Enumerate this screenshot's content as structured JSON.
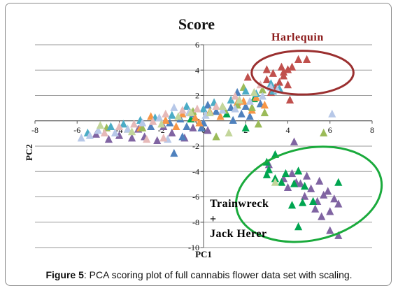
{
  "caption": {
    "label": "Figure 5",
    "text": ": PCA scoring plot of full cannabis flower data set with scaling."
  },
  "chart_data": {
    "type": "scatter",
    "title": "Score",
    "xlabel": "PC1",
    "ylabel": "PC2",
    "xlim": [
      -8,
      8
    ],
    "ylim": [
      -10,
      6
    ],
    "x_ticks": [
      "-8",
      "-6",
      "-4",
      "-2",
      "0",
      "2",
      "4",
      "6",
      "8"
    ],
    "y_ticks": [
      "6",
      "4",
      "2",
      "0",
      "-2",
      "-4",
      "-6",
      "-8",
      "-10"
    ],
    "grid": "horizontal",
    "marker": "triangle",
    "annotations": [
      {
        "text": "Harlequin",
        "color": "#8b1a1a"
      },
      {
        "text": "Trainwreck",
        "color": "#000000"
      },
      {
        "text": "+",
        "color": "#000000"
      },
      {
        "text": "Jack Herer",
        "color": "#000000"
      }
    ],
    "clusters": [
      {
        "label": "Harlequin",
        "color": "#9b3030",
        "center": [
          4.7,
          3.8
        ],
        "radius": [
          2.9,
          1.9
        ]
      },
      {
        "label": "Trainwreck + Jack Herer",
        "color": "#1aaa3c",
        "center": [
          5.0,
          -5.8
        ],
        "radius": [
          4.2,
          4.0
        ]
      }
    ],
    "series": [
      {
        "color": "#c0504d",
        "points": [
          [
            3.0,
            4.0
          ],
          [
            3.7,
            4.2
          ],
          [
            4.0,
            4.0
          ],
          [
            4.2,
            4.2
          ],
          [
            4.5,
            4.8
          ],
          [
            4.9,
            4.8
          ],
          [
            3.3,
            3.7
          ],
          [
            3.8,
            3.5
          ],
          [
            3.6,
            3.0
          ],
          [
            4.0,
            2.8
          ],
          [
            3.4,
            2.6
          ],
          [
            4.1,
            1.6
          ],
          [
            3.0,
            3.2
          ],
          [
            2.1,
            3.4
          ],
          [
            3.2,
            2.2
          ],
          [
            3.8,
            3.8
          ]
        ]
      },
      {
        "color": "#8064a2",
        "points": [
          [
            4.2,
            -4.2
          ],
          [
            4.9,
            -4.4
          ],
          [
            5.5,
            -4.8
          ],
          [
            4.6,
            -5.0
          ],
          [
            5.1,
            -5.4
          ],
          [
            5.9,
            -5.6
          ],
          [
            4.8,
            -6.0
          ],
          [
            5.4,
            -6.4
          ],
          [
            6.2,
            -6.2
          ],
          [
            6.4,
            -6.6
          ],
          [
            5.3,
            -7.0
          ],
          [
            6.0,
            -7.2
          ],
          [
            5.6,
            -7.6
          ],
          [
            6.4,
            -9.1
          ],
          [
            6.0,
            -8.7
          ],
          [
            3.8,
            -4.6
          ],
          [
            4.3,
            -1.7
          ],
          [
            5.7,
            -5.9
          ],
          [
            4.4,
            -4.9
          ],
          [
            3.1,
            -3.5
          ],
          [
            4.0,
            -5.3
          ],
          [
            -5.1,
            -1.1
          ],
          [
            -4.5,
            -1.5
          ],
          [
            -4.0,
            -1.2
          ],
          [
            -3.4,
            -1.4
          ],
          [
            -2.8,
            -1.3
          ],
          [
            -2.2,
            -1.6
          ],
          [
            -1.5,
            -1.0
          ],
          [
            -0.9,
            -1.4
          ],
          [
            -3.1,
            -0.7
          ],
          [
            -1.9,
            -0.5
          ],
          [
            -0.5,
            -0.6
          ],
          [
            0.2,
            -0.8
          ]
        ]
      },
      {
        "color": "#00a550",
        "points": [
          [
            3.0,
            -3.3
          ],
          [
            3.1,
            -3.9
          ],
          [
            3.4,
            -2.7
          ],
          [
            3.4,
            -4.6
          ],
          [
            3.9,
            -4.2
          ],
          [
            4.5,
            -4.0
          ],
          [
            3.7,
            -4.9
          ],
          [
            4.3,
            -5.0
          ],
          [
            4.8,
            -5.2
          ],
          [
            4.2,
            -6.7
          ],
          [
            4.7,
            -6.5
          ],
          [
            5.2,
            -6.4
          ],
          [
            4.5,
            -8.4
          ],
          [
            6.4,
            -4.9
          ],
          [
            2.4,
            1.7
          ],
          [
            -0.6,
            0.1
          ],
          [
            2.0,
            -0.6
          ],
          [
            1.1,
            0.5
          ],
          [
            3.0,
            -4.3
          ]
        ]
      },
      {
        "color": "#4f81bd",
        "points": [
          [
            1.6,
            2.2
          ],
          [
            2.0,
            1.1
          ],
          [
            1.8,
            0.5
          ],
          [
            2.7,
            1.3
          ],
          [
            2.2,
            0.3
          ],
          [
            1.3,
            1.0
          ],
          [
            0.6,
            0.7
          ],
          [
            0.2,
            1.2
          ],
          [
            -0.5,
            0.5
          ],
          [
            -1.1,
            0.1
          ],
          [
            -1.6,
            -0.2
          ],
          [
            -2.5,
            -0.5
          ],
          [
            -0.8,
            -0.5
          ],
          [
            0.0,
            -0.2
          ],
          [
            1.4,
            0.0
          ],
          [
            -0.1,
            -0.6
          ],
          [
            -1.4,
            -2.6
          ],
          [
            -1.0,
            -1.3
          ]
        ]
      },
      {
        "color": "#f79646",
        "points": [
          [
            1.9,
            1.5
          ],
          [
            2.5,
            1.8
          ],
          [
            2.3,
            0.8
          ],
          [
            1.6,
            1.4
          ],
          [
            0.8,
            0.3
          ],
          [
            0.3,
            0.7
          ],
          [
            -0.4,
            0.2
          ],
          [
            -1.0,
            0.5
          ],
          [
            -1.8,
            0.0
          ],
          [
            -2.5,
            0.3
          ],
          [
            -1.3,
            -0.5
          ],
          [
            -0.2,
            -0.2
          ],
          [
            2.9,
            1.2
          ],
          [
            -3.0,
            -0.6
          ]
        ]
      },
      {
        "color": "#9bbb59",
        "points": [
          [
            1.9,
            2.6
          ],
          [
            2.8,
            2.4
          ],
          [
            2.9,
            0.6
          ],
          [
            2.3,
            1.0
          ],
          [
            1.6,
            1.2
          ],
          [
            1.0,
            0.8
          ],
          [
            -0.5,
            0.7
          ],
          [
            -2.9,
            -0.6
          ],
          [
            -3.6,
            -0.7
          ],
          [
            -4.6,
            -0.6
          ],
          [
            0.6,
            -1.3
          ],
          [
            5.7,
            -1.0
          ],
          [
            2.6,
            -0.3
          ]
        ]
      },
      {
        "color": "#4bacc6",
        "points": [
          [
            3.3,
            2.3
          ],
          [
            3.6,
            2.5
          ],
          [
            3.2,
            2.9
          ],
          [
            2.5,
            2.1
          ],
          [
            2.0,
            2.3
          ],
          [
            1.3,
            1.6
          ],
          [
            0.5,
            1.4
          ],
          [
            0.0,
            0.9
          ],
          [
            -0.8,
            1.1
          ],
          [
            -1.5,
            0.4
          ],
          [
            -2.3,
            0.2
          ],
          [
            -3.0,
            0.0
          ],
          [
            -3.8,
            -0.3
          ],
          [
            -4.4,
            -0.5
          ],
          [
            -5.5,
            -1.0
          ]
        ]
      },
      {
        "color": "#b7c8e8",
        "points": [
          [
            3.5,
            2.4
          ],
          [
            3.2,
            2.6
          ],
          [
            2.8,
            1.9
          ],
          [
            2.2,
            1.5
          ],
          [
            1.5,
            0.9
          ],
          [
            0.9,
            0.8
          ],
          [
            0.1,
            0.4
          ],
          [
            -0.7,
            0.6
          ],
          [
            -1.4,
            1.0
          ],
          [
            -2.1,
            0.2
          ],
          [
            -2.9,
            -0.2
          ],
          [
            -3.6,
            -0.7
          ],
          [
            -4.2,
            -1.0
          ],
          [
            -5.0,
            -0.8
          ],
          [
            -5.8,
            -1.4
          ],
          [
            -5.4,
            -1.2
          ],
          [
            6.1,
            0.5
          ],
          [
            -1.7,
            -1.5
          ]
        ]
      },
      {
        "color": "#e6b9b8",
        "points": [
          [
            2.7,
            2.8
          ],
          [
            1.5,
            1.9
          ],
          [
            0.6,
            1.1
          ],
          [
            -0.3,
            0.9
          ],
          [
            -1.0,
            0.8
          ],
          [
            -1.8,
            0.5
          ],
          [
            -2.4,
            -0.1
          ],
          [
            -3.3,
            -0.3
          ],
          [
            -4.0,
            -0.5
          ],
          [
            -4.7,
            -1.0
          ],
          [
            -1.9,
            -1.4
          ],
          [
            -2.7,
            -1.5
          ]
        ]
      },
      {
        "color": "#c3d69b",
        "points": [
          [
            2.4,
            2.2
          ],
          [
            1.7,
            1.6
          ],
          [
            0.9,
            1.1
          ],
          [
            0.3,
            0.6
          ],
          [
            -0.6,
            0.6
          ],
          [
            -1.2,
            0.3
          ],
          [
            -2.0,
            -0.3
          ],
          [
            -3.4,
            -0.9
          ],
          [
            -4.9,
            -0.4
          ],
          [
            3.4,
            -4.9
          ],
          [
            1.2,
            -1.0
          ]
        ]
      }
    ]
  }
}
